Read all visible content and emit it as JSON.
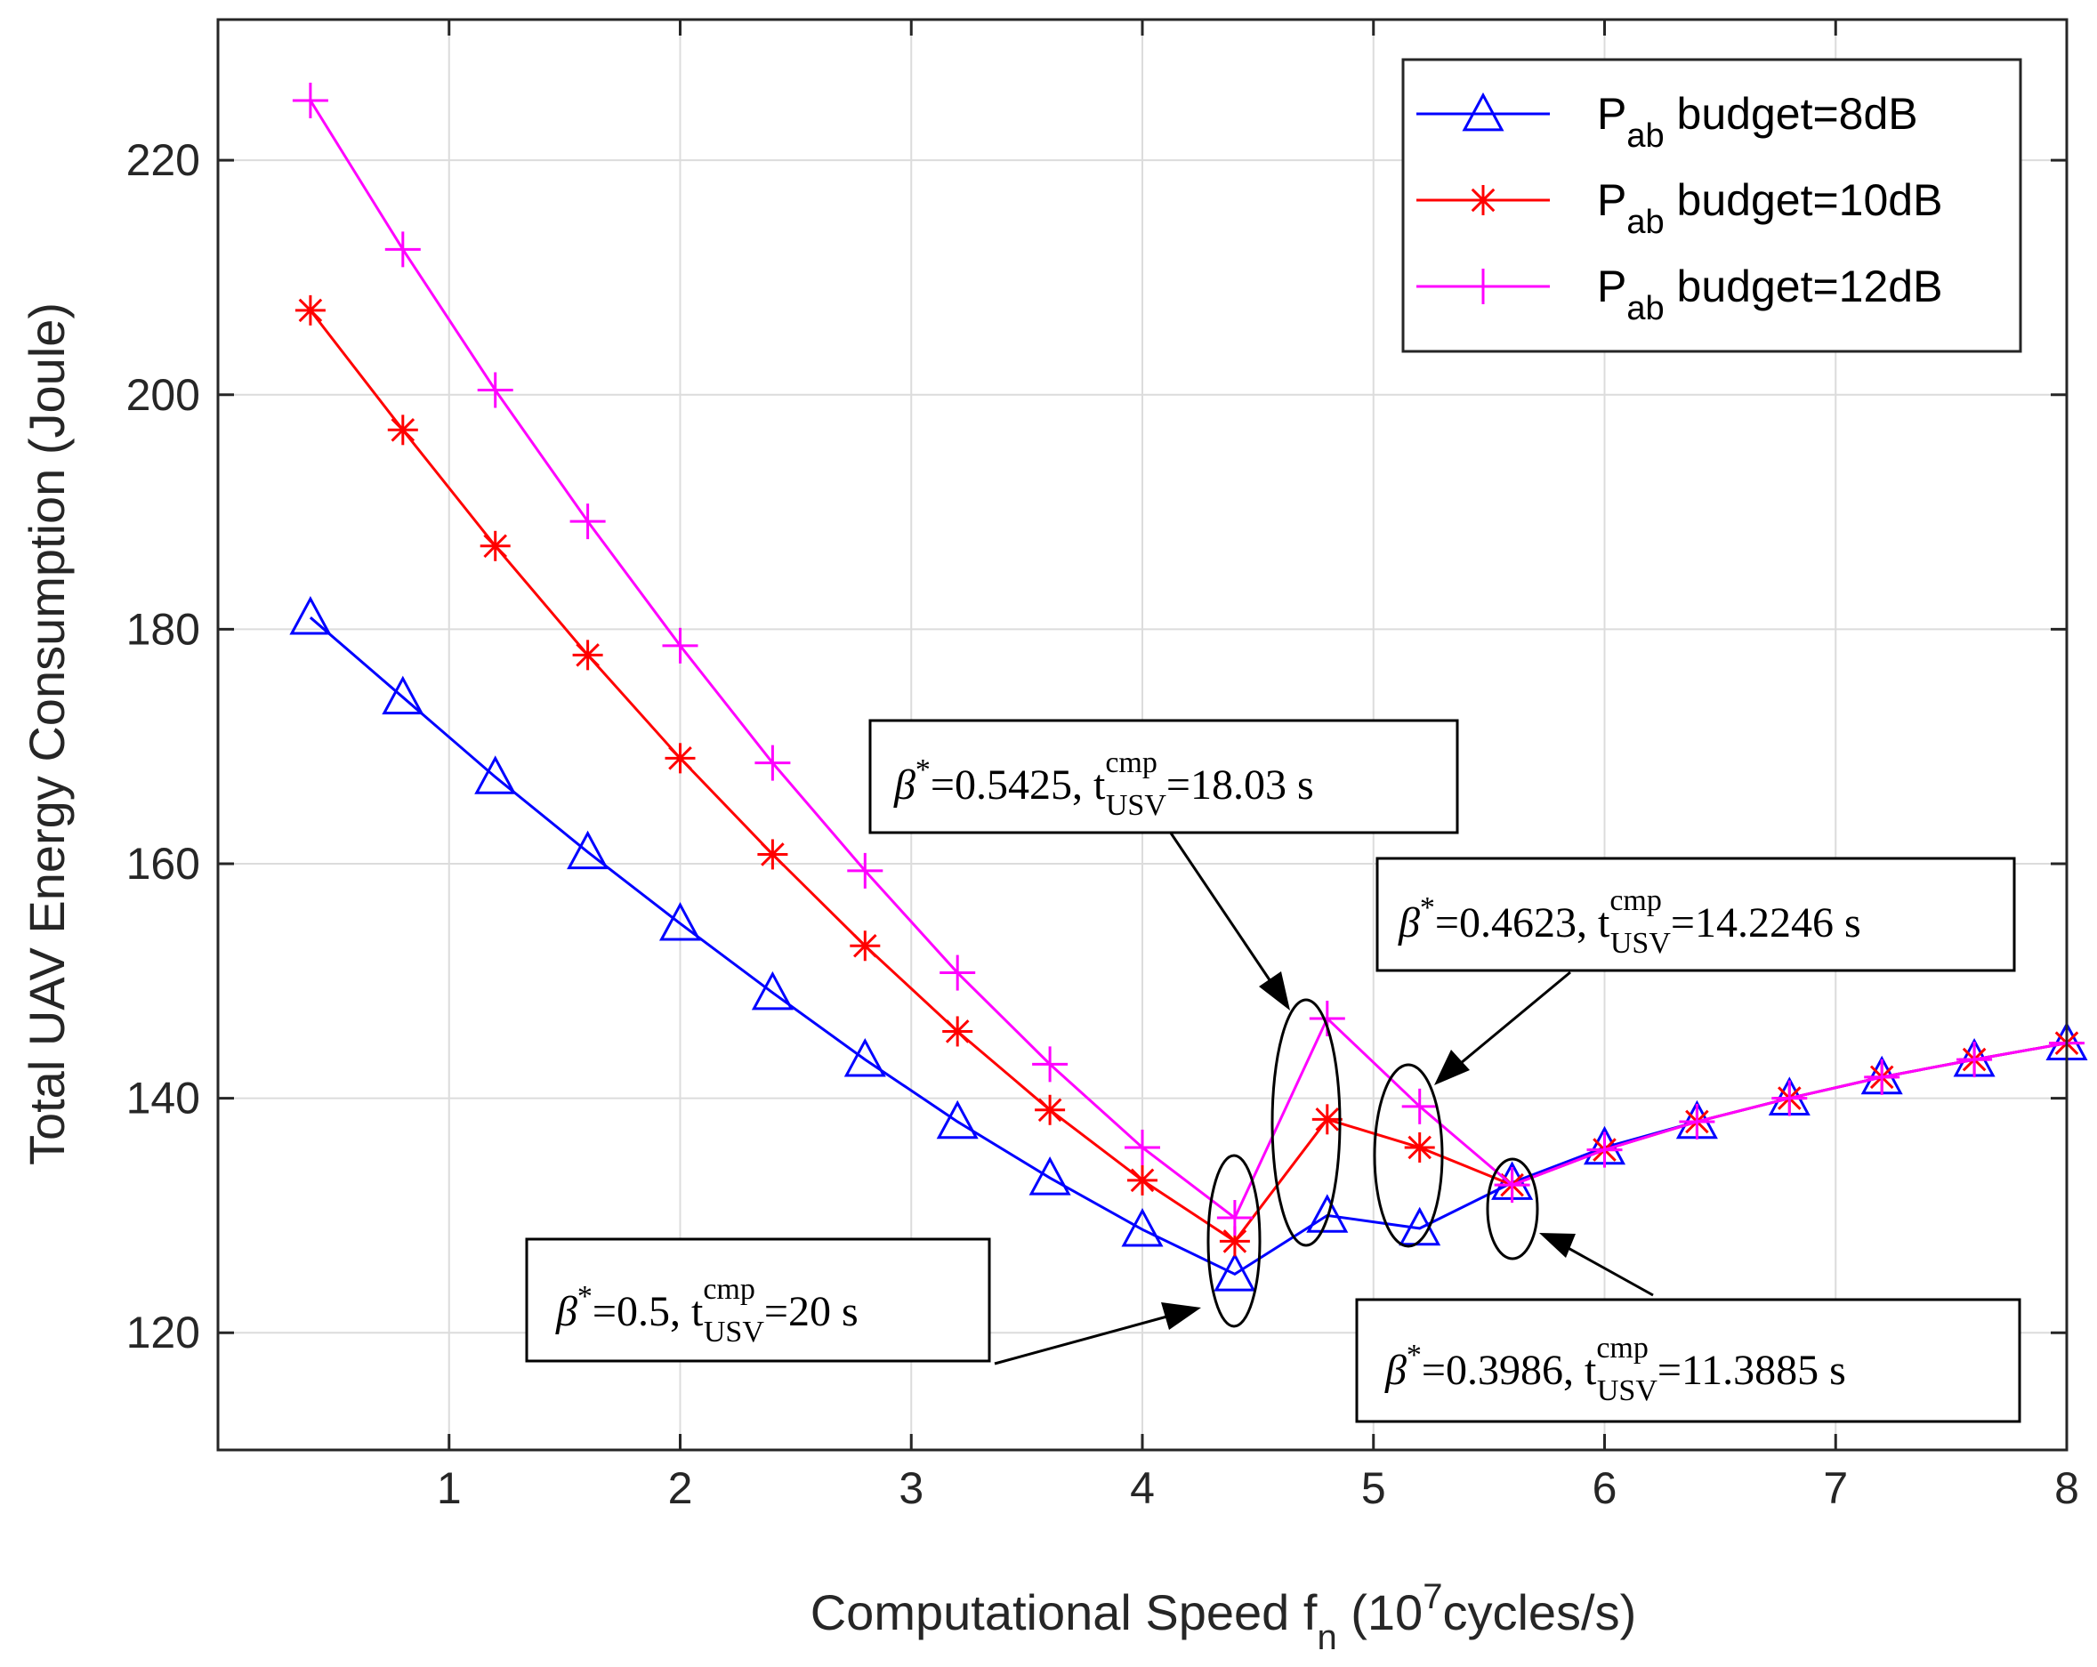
{
  "chart_data": {
    "type": "line",
    "title": "",
    "xlabel": {
      "main": "Computational Speed f",
      "sub": "n",
      "rest": " (10",
      "sup": "7",
      "end": "cycles/s)"
    },
    "ylabel": "Total UAV Energy Consumption (Joule)",
    "xlim": [
      0,
      8
    ],
    "ylim": [
      110,
      232
    ],
    "xticks": [
      1,
      2,
      3,
      4,
      5,
      6,
      7,
      8
    ],
    "yticks": [
      120,
      140,
      160,
      180,
      200,
      220
    ],
    "grid": true,
    "legend_position": "top-right",
    "x": [
      0.4,
      0.8,
      1.2,
      1.6,
      2.0,
      2.4,
      2.8,
      3.2,
      3.6,
      4.0,
      4.4,
      4.8,
      5.2,
      5.6,
      6.0,
      6.4,
      6.8,
      7.2,
      7.6,
      8.0
    ],
    "series": [
      {
        "name": "P_ab budget=8dB",
        "legend": {
          "pre": "P",
          "sub": "ab",
          "post": " budget=8dB"
        },
        "color": "#0000ff",
        "marker": "triangle",
        "values": [
          181,
          174.2,
          167.4,
          161,
          154.9,
          149,
          143.3,
          138,
          133.2,
          128.8,
          125,
          130,
          128.9,
          132.8,
          135.8,
          138,
          140,
          141.8,
          143.3,
          144.7
        ]
      },
      {
        "name": "P_ab budget=10dB",
        "legend": {
          "pre": "P",
          "sub": "ab",
          "post": " budget=10dB"
        },
        "color": "#ff0000",
        "marker": "asterisk",
        "values": [
          207.2,
          197,
          187.1,
          177.8,
          169,
          160.8,
          153,
          145.7,
          139,
          133,
          127.8,
          138.2,
          135.8,
          132.6,
          135.6,
          138,
          140,
          141.8,
          143.3,
          144.7
        ]
      },
      {
        "name": "P_ab budget=12dB",
        "legend": {
          "pre": "P",
          "sub": "ab",
          "post": " budget=12dB"
        },
        "color": "#ff00ff",
        "marker": "plus",
        "values": [
          225.1,
          212.4,
          200.4,
          189.2,
          178.6,
          168.6,
          159.4,
          150.7,
          142.9,
          135.8,
          129.8,
          146.8,
          139.3,
          132.6,
          135.6,
          138,
          140,
          141.8,
          143.3,
          144.7
        ]
      }
    ],
    "annotations": [
      {
        "beta": "β",
        "star": "*",
        "beta_value": "=0.5, t",
        "t_sup": "cmp",
        "t_sub": "USV",
        "t_value": "=20 s"
      },
      {
        "beta": "β",
        "star": "*",
        "beta_value": "=0.5425, t",
        "t_sup": "cmp",
        "t_sub": "USV",
        "t_value": "=18.03 s"
      },
      {
        "beta": "β",
        "star": "*",
        "beta_value": "=0.4623, t",
        "t_sup": "cmp",
        "t_sub": "USV",
        "t_value": "=14.2246 s"
      },
      {
        "beta": "β",
        "star": "*",
        "beta_value": "=0.3986, t",
        "t_sup": "cmp",
        "t_sub": "USV",
        "t_value": "=11.3885 s"
      }
    ]
  }
}
